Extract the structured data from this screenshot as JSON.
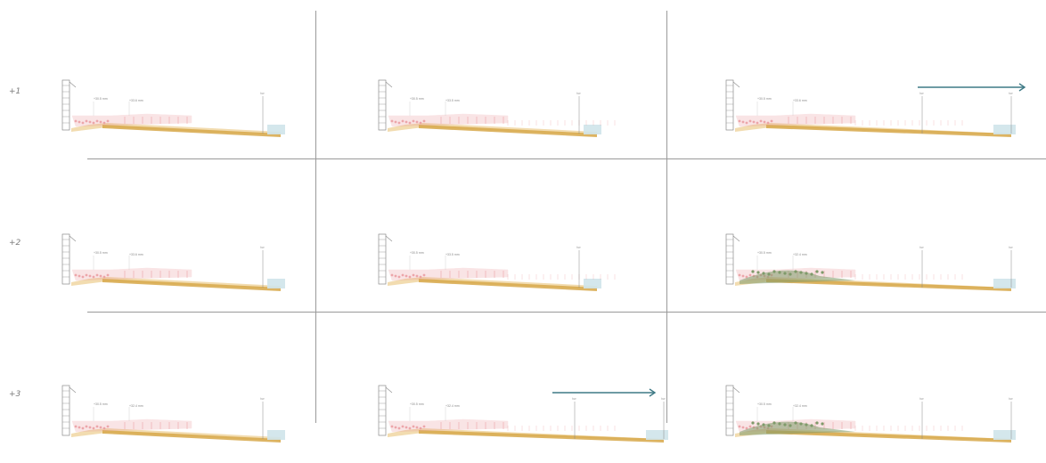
{
  "rows": [
    {
      "label": "+1",
      "panels": [
        {
          "scenario": "present-slim",
          "dune": false,
          "beach_extension": false,
          "arrow": false,
          "labels": [
            "+30.5 mm",
            "+33.6 mm"
          ],
          "post_label": "hw"
        },
        {
          "scenario": "present-wide",
          "dune": false,
          "beach_extension": false,
          "arrow": false,
          "labels": [
            "+30.5 mm",
            "+33.5 mm"
          ],
          "post_label": "hw"
        },
        {
          "scenario": "extended",
          "dune": false,
          "beach_extension": true,
          "arrow": true,
          "labels": [
            "+30.5 mm",
            "+33.6 mm"
          ],
          "post_label": "hw"
        }
      ]
    },
    {
      "label": "+2",
      "panels": [
        {
          "scenario": "present-slim",
          "dune": false,
          "beach_extension": false,
          "arrow": false,
          "labels": [
            "+30.5 mm",
            "+33.6 mm"
          ],
          "post_label": "hw"
        },
        {
          "scenario": "present-wide",
          "dune": false,
          "beach_extension": false,
          "arrow": false,
          "labels": [
            "+30.5 mm",
            "+33.5 mm"
          ],
          "post_label": "hw"
        },
        {
          "scenario": "dune",
          "dune": true,
          "beach_extension": true,
          "arrow": false,
          "labels": [
            "+30.5 mm",
            "+32.4 mm"
          ],
          "post_label": "hw"
        }
      ]
    },
    {
      "label": "+3",
      "panels": [
        {
          "scenario": "present-slim",
          "dune": false,
          "beach_extension": false,
          "arrow": false,
          "labels": [
            "+30.5 mm",
            "+32.4 mm"
          ],
          "post_label": "hw"
        },
        {
          "scenario": "extended",
          "dune": false,
          "beach_extension": true,
          "arrow": true,
          "labels": [
            "+30.5 mm",
            "+32.4 mm"
          ],
          "post_label": "hw"
        },
        {
          "scenario": "dune",
          "dune": true,
          "beach_extension": true,
          "arrow": false,
          "labels": [
            "+30.5 mm",
            "+32.4 mm"
          ],
          "post_label": "hw"
        }
      ]
    }
  ],
  "colors": {
    "grid_line": "#9a9a9a",
    "sand": "#f2dcb0",
    "sand_edge": "#d7a84a",
    "sea": "#cfe4ea",
    "pink": "#e9969b",
    "dune_green": "#7f9a6a",
    "arrow": "#3f7a86",
    "building": "#8c8c8c"
  }
}
